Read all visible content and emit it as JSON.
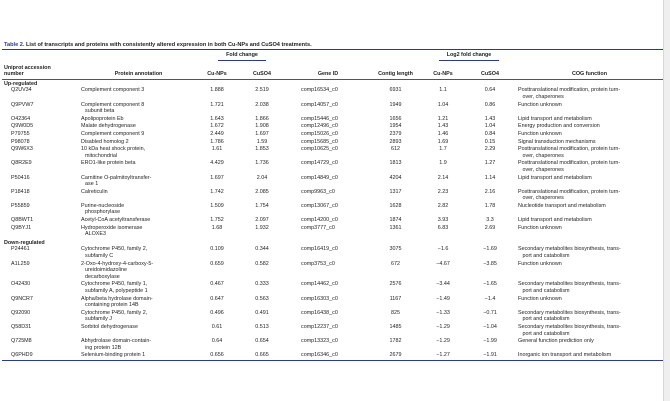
{
  "table": {
    "label": "Table 2.",
    "caption": "List of transcripts and proteins with consistently altered expression in both Cu-NPs and CuSO4 treatments.",
    "group_fold": "Fold change",
    "group_log": "Log2 fold change",
    "headers": [
      "Uniprot accession\nnumber",
      "Protein annotation",
      "Cu-NPs",
      "CuSO4",
      "Gene ID",
      "Contig length",
      "Cu-NPs",
      "CuSO4",
      "COG function"
    ],
    "sections": [
      {
        "label": "Up-regulated",
        "rows": [
          [
            "Q2UV34",
            "Complement component 3",
            "1.888",
            "2.519",
            "comp16534_c0",
            "6931",
            "1.1",
            "0.64",
            "Posttranslational modification, protein turn-\n   over, chaperones"
          ],
          [
            "Q9PVW7",
            "Complement component 8\nsubunit beta",
            "1.721",
            "2.038",
            "comp14057_c0",
            "1949",
            "1.04",
            "0.86",
            "Function unknown"
          ],
          [
            "O42364",
            "Apolipoprotein Eb",
            "1.643",
            "1.866",
            "comp15446_c0",
            "1656",
            "1.21",
            "1.43",
            "Lipid transport and metabolism"
          ],
          [
            "Q9W0D5",
            "Malate dehydrogenase",
            "1.672",
            "1.908",
            "comp12496_c0",
            "1954",
            "1.43",
            "1.04",
            "Energy production and conversion"
          ],
          [
            "P79755",
            "Complement component 9",
            "2.449",
            "1.697",
            "comp15026_c0",
            "2379",
            "1.46",
            "0.84",
            "Function unknown"
          ],
          [
            "P98078",
            "Disabled homolog 2",
            "1.786",
            "1.59",
            "comp15685_c0",
            "2893",
            "1.69",
            "0.15",
            "Signal transduction mechanisms"
          ],
          [
            "Q9W6X3",
            "10 kDa heat shock protein,\nmitochondrial",
            "1.61",
            "1.853",
            "comp10625_c0",
            "612",
            "1.7",
            "2.29",
            "Posttranslational modification, protein turn-\n   over, chaperones"
          ],
          [
            "Q8R2E9",
            "ERO1-like protein beta",
            "4.429",
            "1.736",
            "comp14729_c0",
            "1813",
            "1.9",
            "1.27",
            "Posttranslational modification, protein turn-\n   over, chaperones"
          ],
          [
            "P50416",
            "Carnitine O-palmitoyltransfer-\nase 1",
            "1.697",
            "2.04",
            "comp14849_c0",
            "4204",
            "2.14",
            "1.14",
            "Lipid transport and metabolism"
          ],
          [
            "P18418",
            "Calreticulin",
            "1.742",
            "2.085",
            "comp9963_c0",
            "1317",
            "2.23",
            "2.16",
            "Posttranslational modification, protein turn-\n   over, chaperones"
          ],
          [
            "P55859",
            "Purine-nucleoside\nphosphorylase",
            "1.509",
            "1.754",
            "comp13067_c0",
            "1628",
            "2.82",
            "1.78",
            "Nucleotide transport and metabolism"
          ],
          [
            "Q8BWT1",
            "Acetyl-CoA acetyltransferase",
            "1.752",
            "2.097",
            "comp14200_c0",
            "1874",
            "3.93",
            "3.3",
            "Lipid transport and metabolism"
          ],
          [
            "Q9BYJ1",
            "Hydroperoxide isomerase\nALOXE3",
            "1.68",
            "1.932",
            "comp3777_c0",
            "1361",
            "6.83",
            "2.69",
            "Function unknown"
          ]
        ]
      },
      {
        "label": "Down-regulated",
        "rows": [
          [
            "P24461",
            "Cytochrome P450, family 2,\nsubfamily C",
            "0.109",
            "0.344",
            "comp16419_c0",
            "3075",
            "−1.6",
            "−1.69",
            "Secondary metabolites biosynthesis, trans-\n   port and catabolism"
          ],
          [
            "A1L259",
            "2-Oxo-4-hydroxy-4-carboxy-5-\nureidoimidazoline\ndecarboxylase",
            "0.659",
            "0.582",
            "comp3753_c0",
            "672",
            "−4.67",
            "−3.85",
            "Function unknown"
          ],
          [
            "O42430",
            "Cytochrome P450, family 1,\nsubfamily A, polypeptide 1",
            "0.467",
            "0.333",
            "comp14462_c0",
            "2576",
            "−3.44",
            "−1.65",
            "Secondary metabolites biosynthesis, trans-\n   port and catabolism"
          ],
          [
            "Q9NCR7",
            "Alpha/beta hydrolase domain-\ncontaining protein 14B",
            "0.647",
            "0.563",
            "comp16303_c0",
            "1167",
            "−1.49",
            "−1.4",
            "Function unknown"
          ],
          [
            "Q92090",
            "Cytochrome P450, family 2,\nsubfamily J",
            "0.496",
            "0.491",
            "comp16438_c0",
            "825",
            "−1.33",
            "−0.71",
            "Secondary metabolites biosynthesis, trans-\n   port and catabolism"
          ],
          [
            "Q58D31",
            "Sorbitol dehydrogenase",
            "0.61",
            "0.513",
            "comp12237_c0",
            "1485",
            "−1.29",
            "−1.04",
            "Secondary metabolites biosynthesis, trans-\n   port and catabolism"
          ],
          [
            "Q725M8",
            "Abhydrolase domain-contain-\ning protein 12B",
            "0.64",
            "0.654",
            "comp13323_c0",
            "1782",
            "−1.29",
            "−1.99",
            "General function prediction only"
          ],
          [
            "Q6PHD9",
            "Selenium-binding protein 1",
            "0.656",
            "0.665",
            "comp16346_c0",
            "2679",
            "−1.27",
            "−1.91",
            "Inorganic ion transport and metabolism"
          ]
        ]
      }
    ]
  },
  "colors": {
    "accent_rule": "#2b3a8c"
  }
}
